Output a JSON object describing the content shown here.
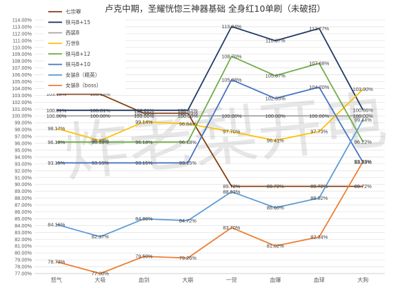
{
  "watermark": "炸老梨开电",
  "chart_data": {
    "type": "line",
    "title": "卢克中期，圣耀恍惚三神器基础 全身红10单刷（未破招）",
    "categories": [
      "怒气",
      "大吸",
      "血剑",
      "大崩",
      "一觉",
      "血爆",
      "血球",
      "大狗"
    ],
    "ylim": [
      77,
      114
    ],
    "ytick_step": 1,
    "ytick_format": "%.2f%",
    "grid": true,
    "legend_position": "top-left",
    "series": [
      {
        "name": "七宗罪",
        "color": "#843c0c",
        "values": [
          103.18,
          103.18,
          100.39,
          100.39,
          89.72,
          89.72,
          89.72,
          89.72
        ],
        "labels": [
          "103.18%",
          "103.18%",
          "100.39%",
          "100.39%",
          "89.72%",
          "89.72%",
          "89.72%",
          "89.72%"
        ]
      },
      {
        "name": "铁马B+15",
        "color": "#203864",
        "values": [
          100.81,
          100.81,
          100.81,
          100.81,
          113.04,
          110.97,
          112.77,
          100.86
        ],
        "labels": [
          "100.81%",
          "100.81%",
          "100.81%",
          "100.81%",
          "113.04%",
          "110.97%",
          "112.77%",
          "100.86%"
        ]
      },
      {
        "name": "西装B",
        "color": "#a5a5a5",
        "values": [
          100.0,
          100.0,
          100.0,
          100.0,
          100.0,
          100.0,
          100.0,
          100.0
        ],
        "labels": [
          "100.00%",
          "100.00%",
          "100.00%",
          "100.00%",
          "100.00%",
          "100.00%",
          "100.00%",
          "100.00%"
        ]
      },
      {
        "name": "万世B",
        "color": "#ffc000",
        "values": [
          98.17,
          96.39,
          99.14,
          98.84,
          97.7,
          96.41,
          97.73,
          103.9
        ],
        "labels": [
          "98.17%",
          "96.39%",
          "99.14%",
          "98.84%",
          "97.70%",
          "96.41%",
          "97.73%",
          "103.90%"
        ]
      },
      {
        "name": "铁马B+12",
        "color": "#70ad47",
        "values": [
          96.18,
          96.18,
          96.18,
          96.18,
          108.7,
          105.87,
          107.68,
          96.22
        ],
        "labels": [
          "96.18%",
          "96.18%",
          "96.18%",
          "96.18%",
          "108.70%",
          "105.87%",
          "107.68%",
          "96.22%"
        ]
      },
      {
        "name": "铁马B+10",
        "color": "#4472c4",
        "values": [
          93.15,
          93.15,
          93.15,
          93.15,
          105.28,
          102.55,
          104.2,
          93.23
        ],
        "labels": [
          "93.15%",
          "93.15%",
          "93.15%",
          "93.15%",
          "105.28%",
          "102.55%",
          "104.20%",
          "93.23%"
        ]
      },
      {
        "name": "女装B（精英）",
        "color": "#5b9bd5",
        "values": [
          84.16,
          82.37,
          84.98,
          84.72,
          88.93,
          86.6,
          88.02,
          99.44
        ],
        "labels": [
          "84.16%",
          "82.37%",
          "84.98%",
          "84.72%",
          "88.93%",
          "86.60%",
          "88.02%",
          "99.44%"
        ]
      },
      {
        "name": "女装B（boss）",
        "color": "#ed7d31",
        "values": [
          78.73,
          77.0,
          79.5,
          79.26,
          83.7,
          81.02,
          82.34,
          93.33
        ],
        "labels": [
          "78.73%",
          "77.00%",
          "79.50%",
          "79.26%",
          "83.70%",
          "81.02%",
          "82.34%",
          "93.33%"
        ]
      }
    ]
  }
}
